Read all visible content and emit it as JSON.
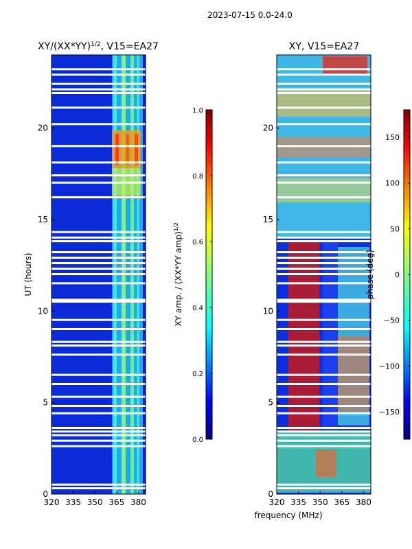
{
  "figure": {
    "suptitle": "2023-07-15 0.0-24.0",
    "xlabel": "frequency (MHz)"
  },
  "chart_data": [
    {
      "type": "heatmap",
      "title_main": "XY/(XX*YY)",
      "title_exp": "1/2",
      "title_tail": ", V15=EA27",
      "xlabel": "",
      "ylabel": "UT (hours)",
      "xlim": [
        320,
        385
      ],
      "ylim": [
        0,
        24
      ],
      "xticks": [
        {
          "v": 320,
          "label": "320"
        },
        {
          "v": 335,
          "label": "335"
        },
        {
          "v": 350,
          "label": "350"
        },
        {
          "v": 365,
          "label": "365"
        },
        {
          "v": 380,
          "label": "380"
        }
      ],
      "yticks": [
        {
          "v": 0,
          "label": "0"
        },
        {
          "v": 5,
          "label": "5"
        },
        {
          "v": 10,
          "label": "10"
        },
        {
          "v": 15,
          "label": "15"
        },
        {
          "v": 20,
          "label": "20"
        }
      ],
      "gap_hours": [
        0.3,
        0.5,
        2.6,
        2.9,
        3.2,
        3.4,
        3.6,
        4.4,
        4.8,
        5.3,
        6.0,
        6.5,
        7.6,
        8.1,
        8.3,
        9.0,
        9.5,
        10.5,
        10.6,
        11.5,
        12.0,
        12.3,
        12.6,
        12.9,
        13.2,
        13.8,
        14.0,
        14.3,
        16.2,
        17.0,
        17.4,
        18.1,
        19.0,
        20.2,
        21.1,
        21.9,
        22.1,
        22.4,
        22.9,
        23.2
      ]
    },
    {
      "type": "heatmap",
      "title": "XY, V15=EA27",
      "xlabel": "",
      "ylabel": "",
      "xlim": [
        320,
        385
      ],
      "ylim": [
        0,
        24
      ],
      "xticks": [
        {
          "v": 320,
          "label": "320"
        },
        {
          "v": 335,
          "label": "335"
        },
        {
          "v": 350,
          "label": "350"
        },
        {
          "v": 365,
          "label": "365"
        },
        {
          "v": 380,
          "label": "380"
        }
      ],
      "yticks": [
        {
          "v": 0,
          "label": "0"
        },
        {
          "v": 5,
          "label": "5"
        },
        {
          "v": 10,
          "label": "10"
        },
        {
          "v": 15,
          "label": "15"
        },
        {
          "v": 20,
          "label": "20"
        }
      ],
      "gap_hours": [
        0.3,
        0.5,
        2.6,
        2.9,
        3.2,
        3.4,
        3.6,
        4.4,
        4.8,
        5.3,
        6.0,
        6.5,
        7.6,
        8.1,
        8.3,
        9.0,
        9.5,
        10.5,
        10.6,
        11.5,
        12.0,
        12.3,
        12.6,
        12.9,
        13.2,
        13.8,
        14.0,
        14.3,
        16.2,
        17.0,
        17.4,
        18.1,
        19.0,
        20.2,
        21.1,
        21.9,
        22.1,
        22.4,
        22.9,
        23.2
      ]
    }
  ],
  "colorbars": [
    {
      "label_main": "XY amp. / (XX*YY amp)",
      "label_exp": "1/2",
      "range": [
        0.0,
        1.0
      ],
      "ticks": [
        {
          "v": 0.0,
          "label": "0.0"
        },
        {
          "v": 0.2,
          "label": "0.2"
        },
        {
          "v": 0.4,
          "label": "0.4"
        },
        {
          "v": 0.6,
          "label": "0.6"
        },
        {
          "v": 0.8,
          "label": "0.8"
        },
        {
          "v": 1.0,
          "label": "1.0"
        }
      ]
    },
    {
      "label": "phase (deg)",
      "range": [
        -180,
        180
      ],
      "ticks": [
        {
          "v": -150,
          "label": "−150"
        },
        {
          "v": -100,
          "label": "−100"
        },
        {
          "v": -50,
          "label": "−50"
        },
        {
          "v": 0,
          "label": "0"
        },
        {
          "v": 50,
          "label": "50"
        },
        {
          "v": 100,
          "label": "100"
        },
        {
          "v": 150,
          "label": "150"
        }
      ]
    }
  ],
  "colors": {
    "jet": [
      "#00007f",
      "#0000ff",
      "#007fff",
      "#00ffff",
      "#7fff7f",
      "#ffff00",
      "#ff7f00",
      "#ff0000",
      "#7f0000"
    ],
    "gap": "#ffffff",
    "axis": "#000000"
  }
}
